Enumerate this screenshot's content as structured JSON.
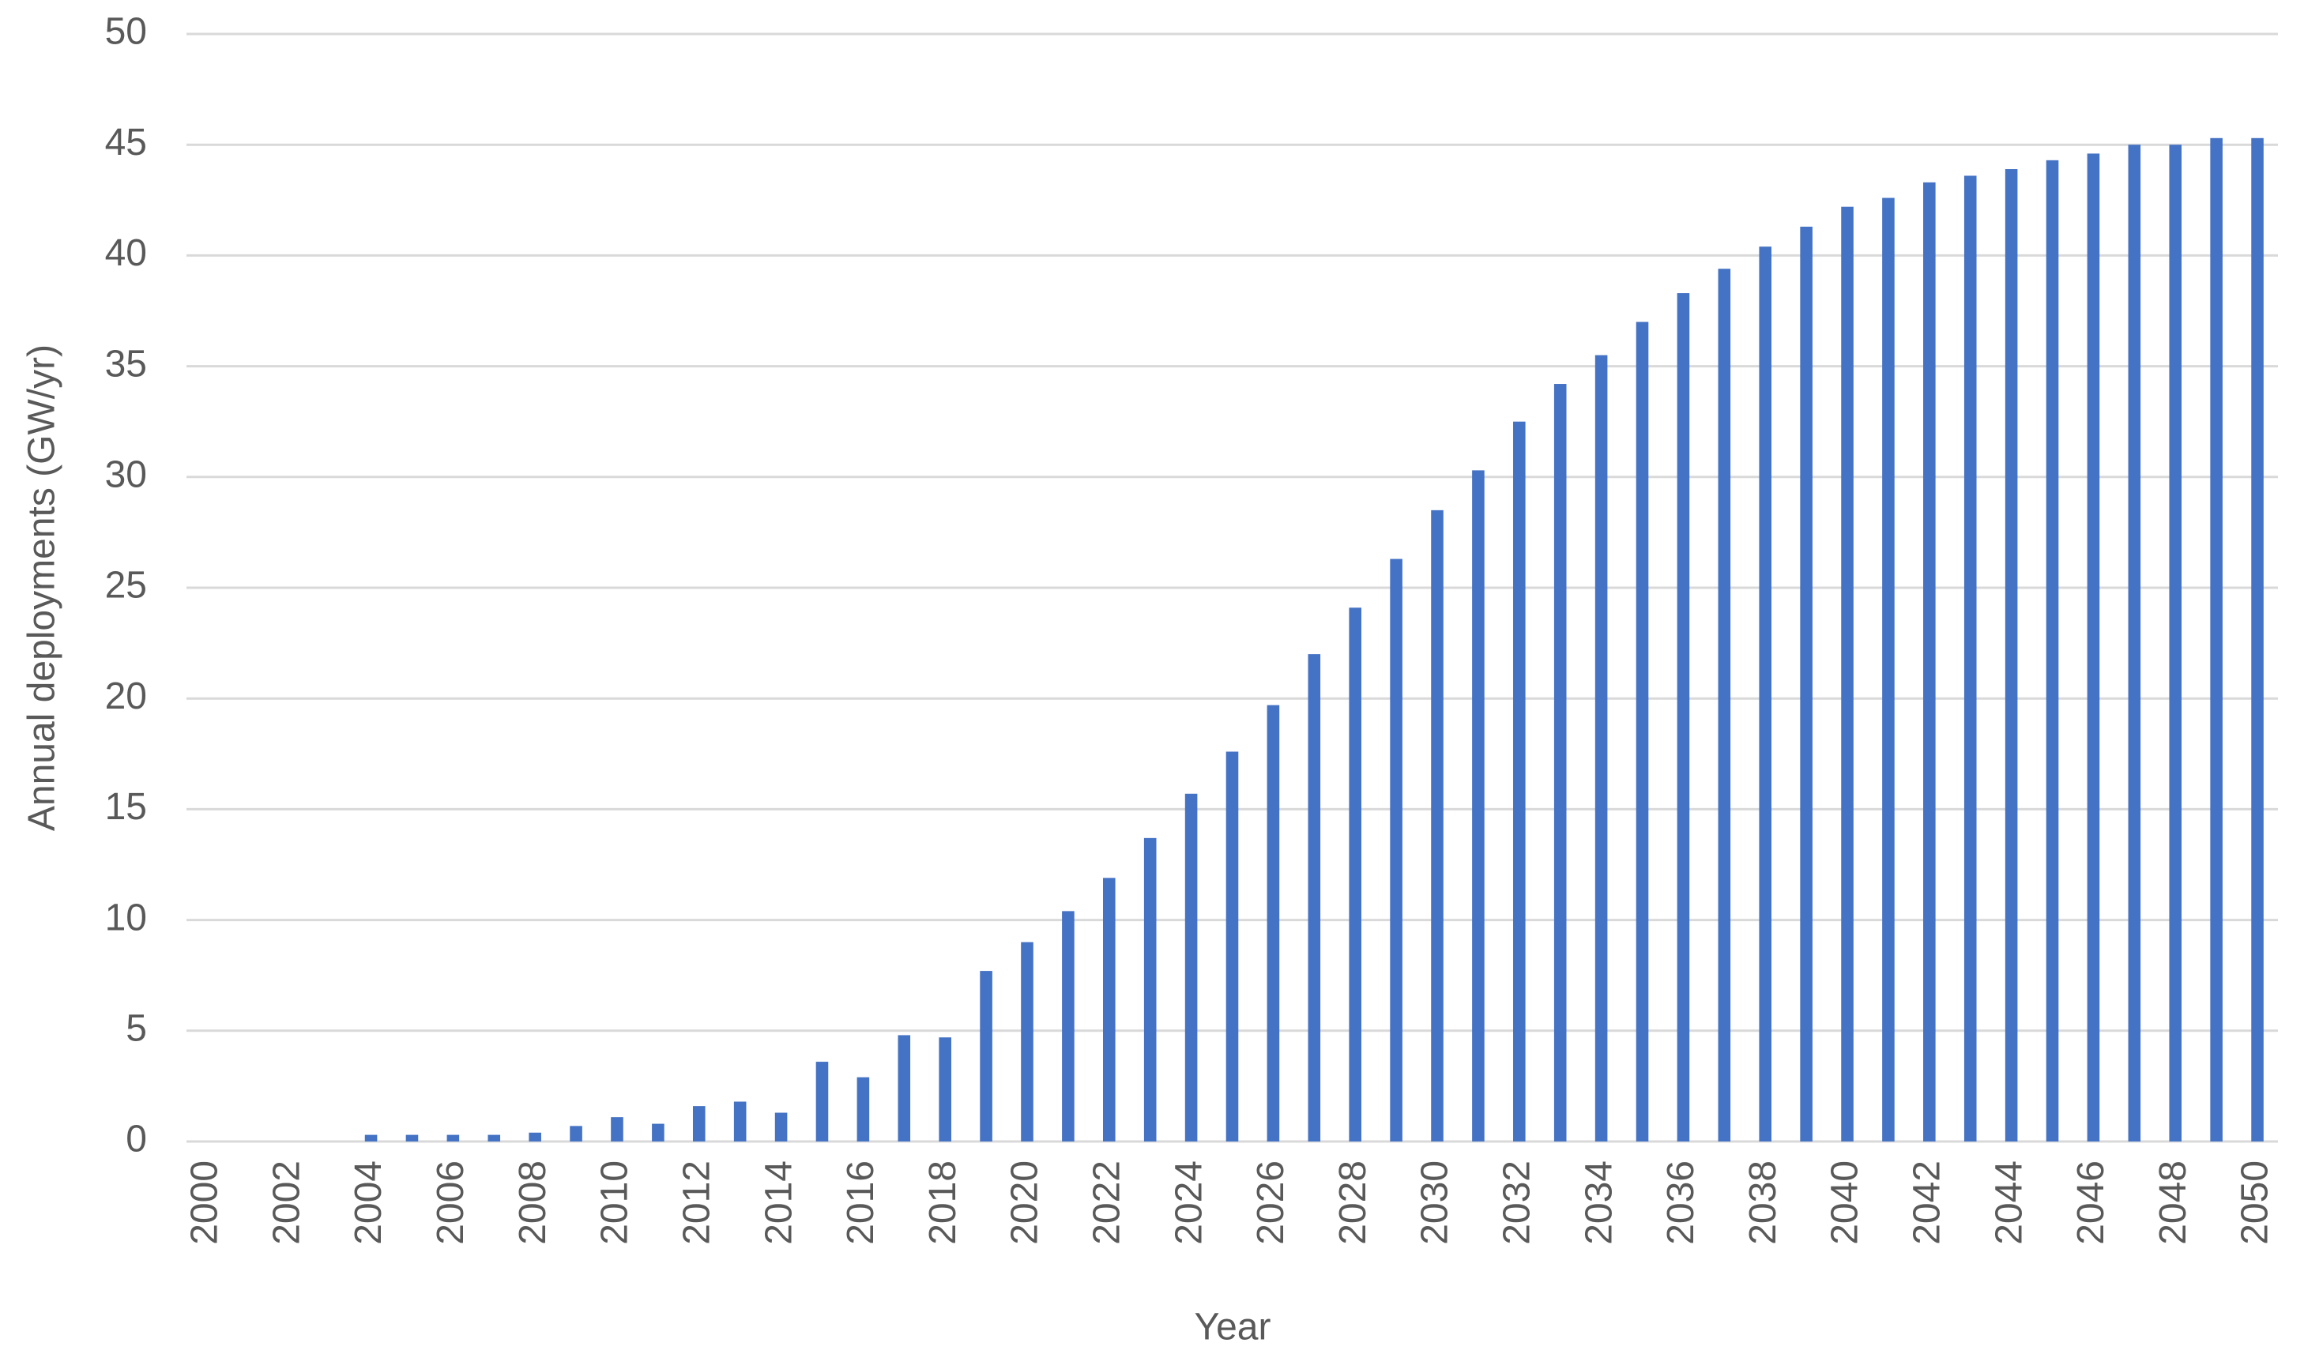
{
  "chart_data": {
    "type": "bar",
    "x_label": "Year",
    "y_label": "Annual deployments (GW/yr)",
    "categories": [
      "2000",
      null,
      "2002",
      null,
      "2004",
      null,
      "2006",
      null,
      "2008",
      null,
      "2010",
      null,
      "2012",
      null,
      "2014",
      null,
      "2016",
      null,
      "2018",
      null,
      "2020",
      null,
      "2022",
      null,
      "2024",
      null,
      "2026",
      null,
      "2028",
      null,
      "2030",
      null,
      "2032",
      null,
      "2034",
      null,
      "2036",
      null,
      "2038",
      null,
      "2040",
      null,
      "2042",
      null,
      "2044",
      null,
      "2046",
      null,
      "2048",
      null,
      "2050"
    ],
    "values": [
      0,
      0,
      0,
      0,
      0.3,
      0.3,
      0.3,
      0.3,
      0.4,
      0.7,
      1.1,
      0.8,
      1.6,
      1.8,
      1.3,
      3.6,
      2.9,
      4.8,
      4.7,
      7.7,
      9.0,
      10.4,
      11.9,
      13.7,
      15.7,
      17.6,
      19.7,
      22.0,
      24.1,
      26.3,
      28.5,
      30.3,
      32.5,
      34.2,
      35.5,
      37.0,
      38.3,
      39.4,
      40.4,
      41.3,
      42.2,
      42.6,
      43.3,
      43.6,
      43.9,
      44.3,
      44.6,
      45.0,
      45.0,
      45.3,
      45.3
    ],
    "color": "#4472c4",
    "ylim": [
      0,
      50
    ],
    "yticks": [
      0,
      5,
      10,
      15,
      20,
      25,
      30,
      35,
      40,
      45,
      50
    ],
    "grid": true
  }
}
